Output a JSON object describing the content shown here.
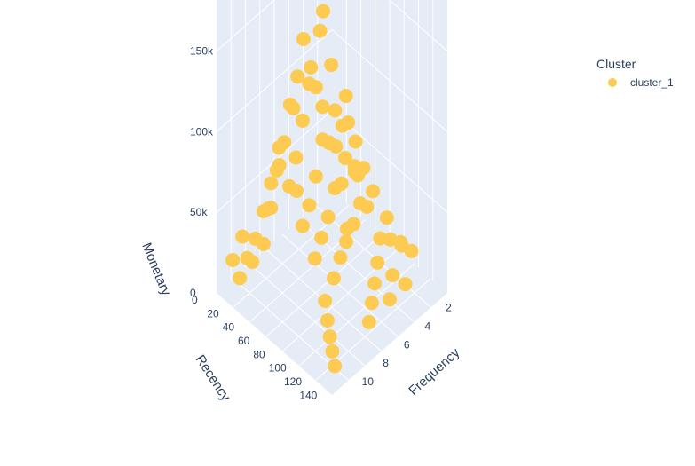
{
  "chart_data": {
    "type": "scatter",
    "projection": "3d",
    "legend": {
      "title": "Cluster",
      "placement": "top-right"
    },
    "axes": {
      "x": {
        "title": "Frequency",
        "range": [
          1,
          12
        ],
        "ticks": [
          "2",
          "4",
          "6",
          "8",
          "10"
        ]
      },
      "y": {
        "title": "Recency",
        "range": [
          0,
          150
        ],
        "ticks": [
          "0",
          "20",
          "40",
          "60",
          "80",
          "100",
          "120",
          "140"
        ]
      },
      "z": {
        "title": "Monetary",
        "range": [
          0,
          190000
        ],
        "ticks": [
          "0",
          "50k",
          "100k",
          "150k"
        ]
      }
    },
    "grid": true,
    "series": [
      {
        "name": "cluster_1",
        "color": "#FECB52",
        "points": [
          [
            1.4,
            2,
            182000
          ],
          [
            1.6,
            4,
            181000
          ],
          [
            1.3,
            45,
            35000
          ],
          [
            1.5,
            60,
            28000
          ],
          [
            2.0,
            10,
            40000
          ],
          [
            2.2,
            30,
            60000
          ],
          [
            2.5,
            50,
            45000
          ],
          [
            2.8,
            70,
            30000
          ],
          [
            3.0,
            15,
            70000
          ],
          [
            3.2,
            35,
            55000
          ],
          [
            3.5,
            55,
            80000
          ],
          [
            3.8,
            75,
            40000
          ],
          [
            4.0,
            20,
            90000
          ],
          [
            4.2,
            40,
            65000
          ],
          [
            4.5,
            60,
            50000
          ],
          [
            4.8,
            80,
            35000
          ],
          [
            5.0,
            25,
            100000
          ],
          [
            5.2,
            45,
            75000
          ],
          [
            5.5,
            65,
            55000
          ],
          [
            5.8,
            85,
            40000
          ],
          [
            6.0,
            30,
            85000
          ],
          [
            6.2,
            50,
            60000
          ],
          [
            6.5,
            70,
            45000
          ],
          [
            6.8,
            90,
            30000
          ],
          [
            7.0,
            35,
            70000
          ],
          [
            7.2,
            55,
            50000
          ],
          [
            7.5,
            75,
            40000
          ],
          [
            7.8,
            95,
            25000
          ],
          [
            8.0,
            40,
            60000
          ],
          [
            8.2,
            60,
            45000
          ],
          [
            8.5,
            80,
            35000
          ],
          [
            9.0,
            100,
            20000
          ],
          [
            9.5,
            110,
            15000
          ],
          [
            10.0,
            120,
            12000
          ],
          [
            10.5,
            130,
            10000
          ],
          [
            11.0,
            140,
            8000
          ],
          [
            3.0,
            90,
            20000
          ],
          [
            4.0,
            100,
            15000
          ],
          [
            5.0,
            110,
            12000
          ],
          [
            6.0,
            120,
            10000
          ],
          [
            7.0,
            130,
            8000
          ],
          [
            2.5,
            5,
            110000
          ],
          [
            3.6,
            8,
            95000
          ],
          [
            4.6,
            12,
            120000
          ],
          [
            5.6,
            18,
            105000
          ],
          [
            6.6,
            22,
            95000
          ],
          [
            7.6,
            28,
            80000
          ],
          [
            8.6,
            32,
            70000
          ],
          [
            9.6,
            38,
            55000
          ],
          [
            10.6,
            42,
            40000
          ],
          [
            2.0,
            85,
            25000
          ],
          [
            2.4,
            95,
            18000
          ],
          [
            1.8,
            100,
            15000
          ],
          [
            1.5,
            110,
            12000
          ],
          [
            6.4,
            5,
            60000
          ],
          [
            7.4,
            8,
            45000
          ],
          [
            8.4,
            12,
            35000
          ],
          [
            9.4,
            15,
            25000
          ],
          [
            10.4,
            18,
            20000
          ],
          [
            11.4,
            22,
            15000
          ],
          [
            4.4,
            125,
            20000
          ],
          [
            5.4,
            135,
            15000
          ],
          [
            3.4,
            128,
            10000
          ],
          [
            2.8,
            115,
            25000
          ],
          [
            1.2,
            20,
            30000
          ],
          [
            1.1,
            35,
            25000
          ],
          [
            1.3,
            8,
            55000
          ],
          [
            3.9,
            28,
            140000
          ],
          [
            5.1,
            55,
            125000
          ],
          [
            4.9,
            3,
            75000
          ],
          [
            6.9,
            12,
            55000
          ],
          [
            8.9,
            25,
            45000
          ],
          [
            9.9,
            5,
            25000
          ],
          [
            11.2,
            10,
            20000
          ],
          [
            10.8,
            30,
            25000
          ],
          [
            7.9,
            48,
            60000
          ],
          [
            6.1,
            88,
            35000
          ],
          [
            4.1,
            72,
            60000
          ],
          [
            3.3,
            62,
            70000
          ],
          [
            2.6,
            40,
            85000
          ]
        ]
      }
    ]
  }
}
